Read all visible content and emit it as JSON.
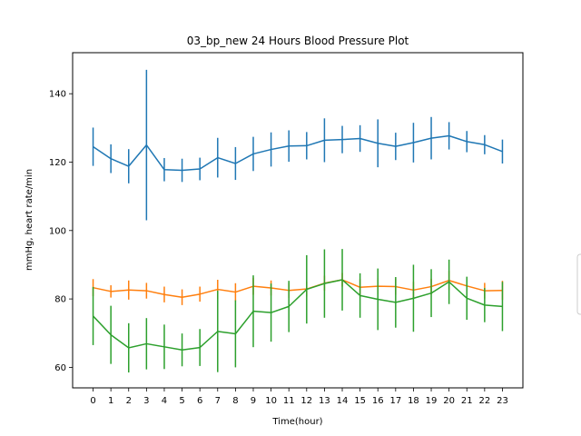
{
  "chart_data": {
    "type": "line",
    "title": "03_bp_new 24 Hours Blood Pressure Plot",
    "xlabel": "Time(hour)",
    "ylabel": "mmHg, heart rate/min",
    "xlim": [
      -1.15,
      24.15
    ],
    "ylim": [
      54,
      152
    ],
    "x": [
      0,
      1,
      2,
      3,
      4,
      5,
      6,
      7,
      8,
      9,
      10,
      11,
      12,
      13,
      14,
      15,
      16,
      17,
      18,
      19,
      20,
      21,
      22,
      23
    ],
    "x_ticks": [
      "0",
      "1",
      "2",
      "3",
      "4",
      "5",
      "6",
      "7",
      "8",
      "9",
      "10",
      "11",
      "12",
      "13",
      "14",
      "15",
      "16",
      "17",
      "18",
      "19",
      "20",
      "21",
      "22",
      "23"
    ],
    "y_ticks": [
      60,
      80,
      100,
      120,
      140
    ],
    "grid": false,
    "series": [
      {
        "color": "#1f77b4",
        "values": [
          124.5,
          121,
          118.8,
          125,
          117.8,
          117.6,
          118,
          121.3,
          119.6,
          122.4,
          123.7,
          124.7,
          124.8,
          126.4,
          126.6,
          126.9,
          125.5,
          124.6,
          125.7,
          127,
          127.7,
          126,
          125.1,
          123.1
        ],
        "errors": [
          5.6,
          4.2,
          5,
          22,
          3.4,
          3.4,
          3.3,
          5.8,
          4.8,
          5,
          5,
          4.6,
          4,
          6.4,
          4,
          3.9,
          7,
          4,
          5.8,
          6.2,
          4,
          3.1,
          2.8,
          3.5
        ]
      },
      {
        "color": "#ff7f0e",
        "values": [
          83.3,
          82.2,
          82.6,
          82.4,
          81.3,
          80.5,
          81.4,
          82.8,
          82,
          83.7,
          83.2,
          82.5,
          82.9,
          84.6,
          85.6,
          83.4,
          83.7,
          83.6,
          82.6,
          83.6,
          85.4,
          83.8,
          82.4,
          82.5
        ],
        "errors": [
          2.5,
          1.8,
          2.8,
          2.3,
          2.3,
          2.3,
          2.2,
          2.8,
          2.6,
          2.5,
          2.2,
          2.2,
          2.2,
          2.2,
          2,
          2.4,
          2.4,
          2.4,
          2.4,
          2.3,
          2.8,
          2.4,
          2.3,
          2.8
        ]
      },
      {
        "color": "#2ca02c",
        "values": [
          75,
          69.5,
          65.7,
          66.9,
          66,
          65.1,
          65.8,
          70.5,
          69.8,
          76.4,
          76,
          77.8,
          82.8,
          84.5,
          85.6,
          81,
          79.9,
          79,
          80.2,
          81.7,
          85,
          80.2,
          78.2,
          77.8
        ],
        "errors": [
          8.5,
          8.5,
          7.2,
          7.5,
          6.5,
          4.8,
          5.4,
          11.9,
          9.8,
          10.5,
          8.5,
          7.5,
          10,
          10,
          9,
          6.5,
          9,
          7.4,
          9.8,
          7,
          6.5,
          6.3,
          5,
          7.2
        ]
      }
    ],
    "legend": {
      "placement": "right, clipped",
      "entries": []
    }
  }
}
